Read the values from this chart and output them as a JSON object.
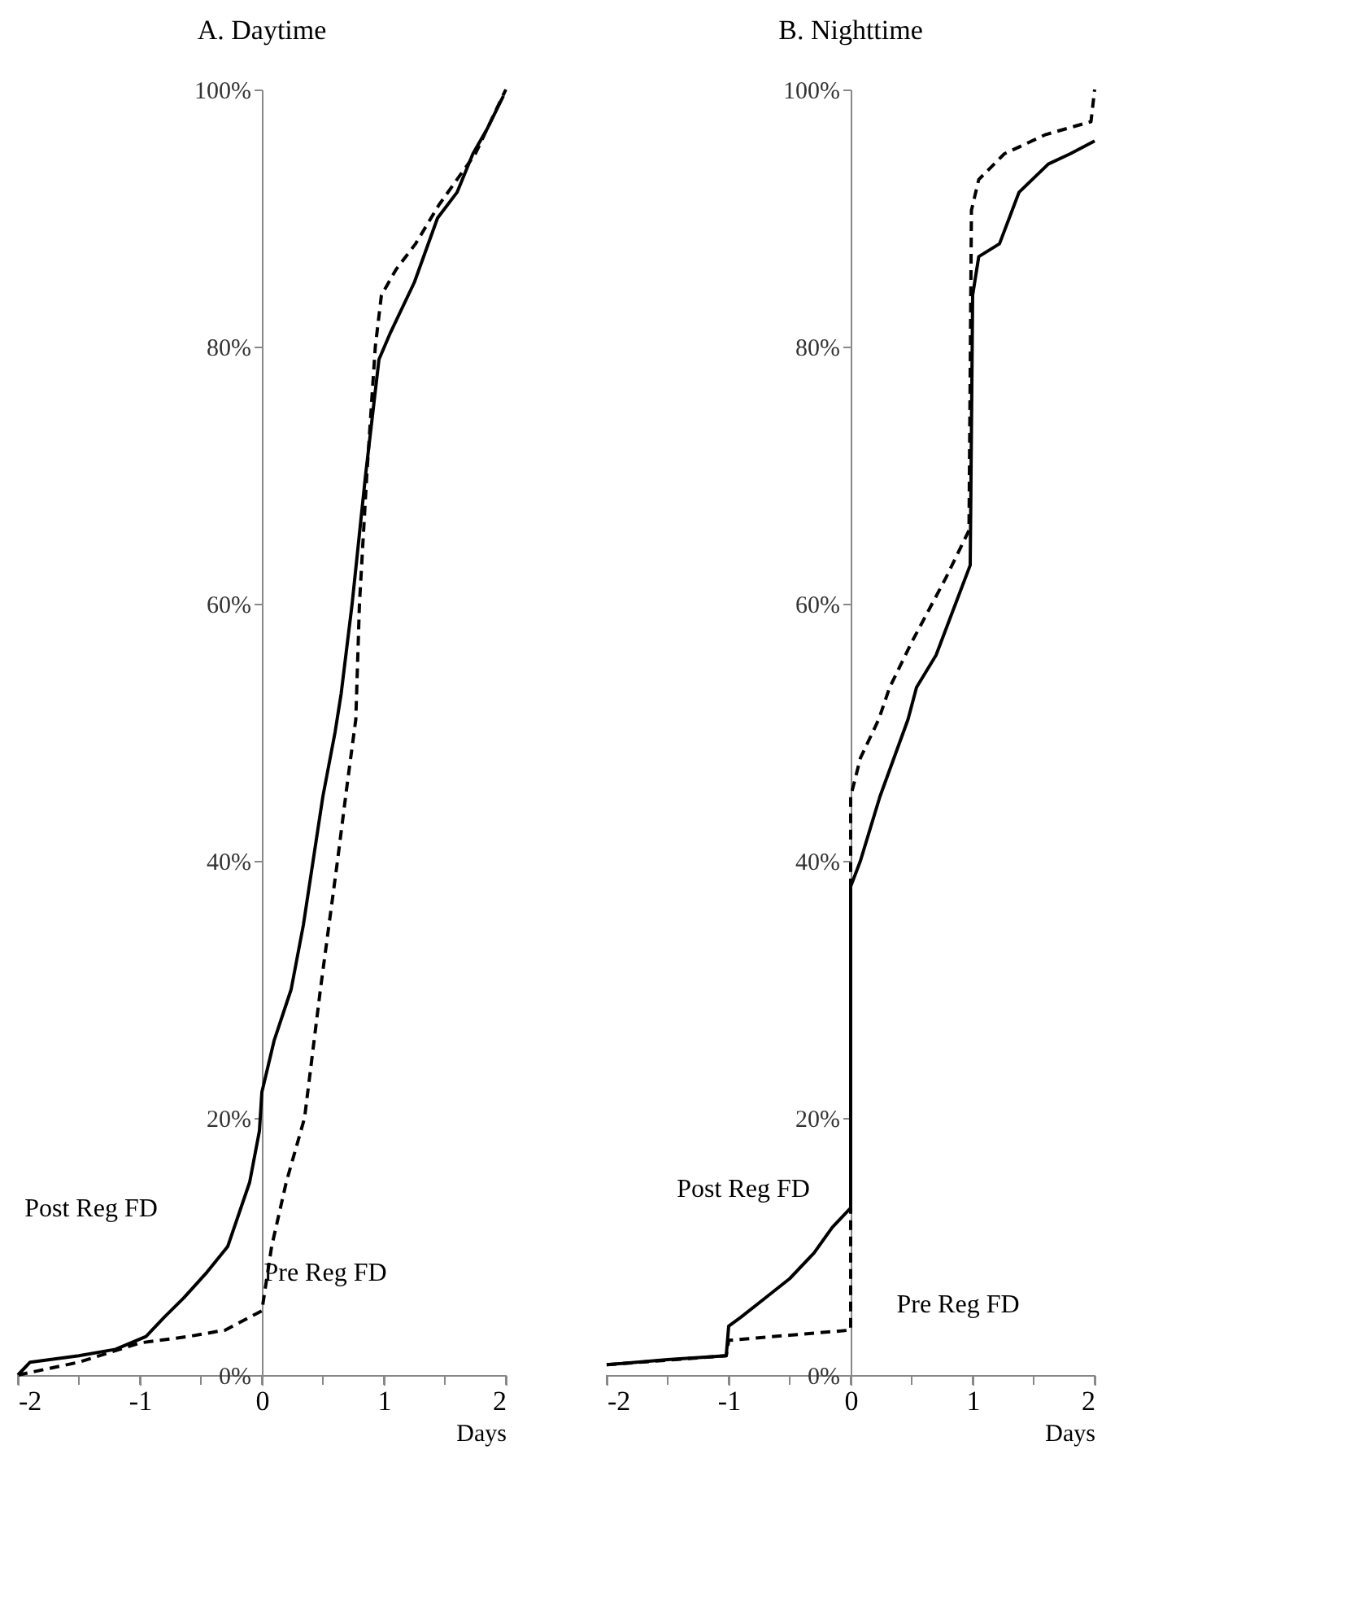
{
  "chart_data": [
    {
      "type": "line",
      "title": "A. Daytime",
      "xlabel": "Days",
      "xlim": [
        -2,
        2
      ],
      "ylim": [
        0,
        100
      ],
      "xticks": [
        -2,
        {
          "value": -1.5,
          "label": null
        },
        -1,
        {
          "value": -0.5,
          "label": null
        },
        0,
        {
          "value": 0.5,
          "label": null
        },
        1,
        {
          "value": 1.5,
          "label": null
        },
        2
      ],
      "yticks": [
        {
          "value": 0,
          "label": "0%"
        },
        {
          "value": 20,
          "label": "20%"
        },
        {
          "value": 40,
          "label": "40%"
        },
        {
          "value": 60,
          "label": "60%"
        },
        {
          "value": 80,
          "label": "80%"
        },
        {
          "value": 100,
          "label": "100%"
        }
      ],
      "grid": false,
      "marker": "none",
      "series": [
        {
          "name": "Post Reg FD",
          "color": "#000000",
          "line_style": "solid",
          "x": [
            -2,
            -1.9,
            -1.5,
            -1.2,
            -0.95,
            -0.8,
            -0.64,
            -0.45,
            -0.28,
            -0.1,
            -0.02,
            0,
            0.1,
            0.24,
            0.34,
            0.42,
            0.5,
            0.6,
            0.65,
            0.74,
            0.85,
            0.96,
            1.05,
            1.25,
            1.44,
            1.6,
            1.73,
            1.85,
            1.98
          ],
          "values": [
            0,
            1,
            1.5,
            2,
            3,
            4.5,
            6,
            8,
            10,
            15,
            19,
            22,
            26,
            30,
            35,
            40,
            45,
            50,
            53,
            60,
            70,
            79,
            81,
            85,
            90,
            92,
            95,
            97,
            99.5
          ]
        },
        {
          "name": "Pre Reg FD",
          "color": "#000000",
          "line_style": "dashed",
          "x": [
            -2,
            -1.5,
            -1,
            -0.6,
            -0.3,
            -0.1,
            0,
            0.08,
            0.2,
            0.35,
            0.48,
            0.62,
            0.7,
            0.77,
            0.8,
            0.86,
            0.93,
            0.98,
            1.1,
            1.26,
            1.45,
            1.75,
            2
          ],
          "values": [
            0,
            1,
            2.5,
            3,
            3.5,
            4.5,
            5,
            10,
            15,
            20,
            30,
            40,
            46,
            51,
            60,
            70,
            80,
            84,
            86,
            88,
            91,
            95,
            100
          ]
        }
      ]
    },
    {
      "type": "line",
      "title": "B. Nighttime",
      "xlabel": "Days",
      "xlim": [
        -2,
        2
      ],
      "ylim": [
        0,
        100
      ],
      "xticks": [
        -2,
        {
          "value": -1.5,
          "label": null
        },
        -1,
        {
          "value": -0.5,
          "label": null
        },
        0,
        {
          "value": 0.5,
          "label": null
        },
        1,
        {
          "value": 1.5,
          "label": null
        },
        2
      ],
      "yticks": [
        {
          "value": 0,
          "label": "0%"
        },
        {
          "value": 20,
          "label": "20%"
        },
        {
          "value": 40,
          "label": "40%"
        },
        {
          "value": 60,
          "label": "60%"
        },
        {
          "value": 80,
          "label": "80%"
        },
        {
          "value": 100,
          "label": "100%"
        }
      ],
      "grid": false,
      "marker": "none",
      "series": [
        {
          "name": "Post Reg FD",
          "color": "#000000",
          "line_style": "solid",
          "x": [
            -2,
            -1.5,
            -1.02,
            -1,
            -0.9,
            -0.7,
            -0.5,
            -0.3,
            -0.15,
            0,
            0,
            0.08,
            0.24,
            0.47,
            0.54,
            0.7,
            0.86,
            0.98,
            1,
            1.05,
            1.22,
            1.38,
            1.62,
            1.8,
            2
          ],
          "values": [
            0.8,
            1.2,
            1.5,
            3.8,
            4.5,
            6,
            7.5,
            9.5,
            11.5,
            13,
            38,
            40,
            45,
            51,
            53.5,
            56,
            60,
            63,
            84,
            87,
            88,
            92,
            94.2,
            95,
            96
          ]
        },
        {
          "name": "Pre Reg FD",
          "color": "#000000",
          "line_style": "dashed",
          "x": [
            -2,
            -1.02,
            -1,
            -0.5,
            0,
            0,
            0.08,
            0.23,
            0.32,
            0.5,
            0.78,
            0.97,
            0.99,
            1.05,
            1.26,
            1.6,
            1.97,
            2
          ],
          "values": [
            0.8,
            1.5,
            2.7,
            3.1,
            3.5,
            45,
            48,
            51,
            53.5,
            57,
            62,
            65.7,
            90.6,
            93,
            95,
            96.5,
            97.5,
            100
          ]
        }
      ]
    }
  ]
}
